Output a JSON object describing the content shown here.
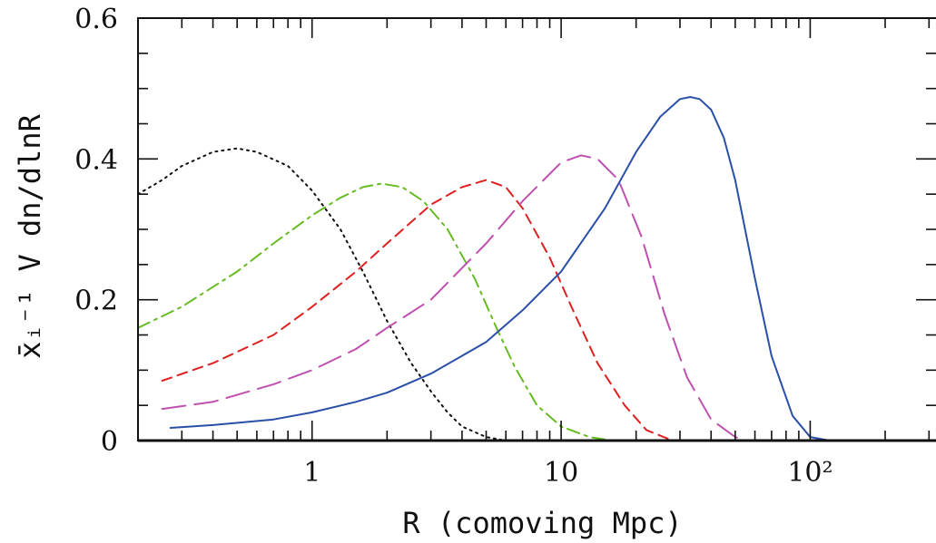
{
  "chart_data": {
    "type": "line",
    "xscale": "log",
    "xlabel": "R (comoving Mpc)",
    "ylabel": "x̄ᵢ⁻¹ V dn/dlnR",
    "xlim": [
      0.2,
      320
    ],
    "ylim": [
      0,
      0.6
    ],
    "x_tick_labels": [
      "1",
      "10",
      "10²"
    ],
    "y_tick_labels": [
      "0",
      "0.2",
      "0.4",
      "0.6"
    ],
    "legend": "none",
    "grid": false,
    "series": [
      {
        "color": "#111111",
        "dash": "dotted",
        "x": [
          0.2,
          0.25,
          0.3,
          0.4,
          0.5,
          0.6,
          0.8,
          1.0,
          1.3,
          1.6,
          2.0,
          2.5,
          3.0,
          3.5,
          4.0,
          5.0,
          6.0
        ],
        "y": [
          0.35,
          0.37,
          0.39,
          0.41,
          0.415,
          0.41,
          0.39,
          0.355,
          0.3,
          0.24,
          0.17,
          0.11,
          0.07,
          0.04,
          0.02,
          0.005,
          0.0
        ]
      },
      {
        "color": "#66bb22",
        "dash": "dash-dot",
        "x": [
          0.2,
          0.3,
          0.5,
          0.7,
          1.0,
          1.3,
          1.6,
          1.9,
          2.3,
          2.8,
          3.5,
          4.5,
          5.5,
          6.5,
          8.0,
          10,
          13,
          16
        ],
        "y": [
          0.16,
          0.19,
          0.24,
          0.28,
          0.32,
          0.345,
          0.36,
          0.365,
          0.36,
          0.34,
          0.3,
          0.23,
          0.16,
          0.105,
          0.05,
          0.02,
          0.005,
          0.0
        ]
      },
      {
        "color": "#e02020",
        "dash": "short-dash",
        "x": [
          0.25,
          0.4,
          0.7,
          1.0,
          1.5,
          2.0,
          3.0,
          4.0,
          5.0,
          6.0,
          7.0,
          9.0,
          11,
          14,
          18,
          22,
          28
        ],
        "y": [
          0.085,
          0.11,
          0.15,
          0.19,
          0.24,
          0.28,
          0.335,
          0.36,
          0.37,
          0.36,
          0.33,
          0.26,
          0.19,
          0.11,
          0.05,
          0.015,
          0.0
        ]
      },
      {
        "color": "#c050b0",
        "dash": "long-dash",
        "x": [
          0.25,
          0.4,
          0.7,
          1.0,
          1.5,
          2.0,
          3.0,
          5.0,
          7.0,
          10,
          12,
          14,
          17,
          21,
          26,
          32,
          40,
          50,
          55
        ],
        "y": [
          0.045,
          0.055,
          0.08,
          0.1,
          0.13,
          0.16,
          0.2,
          0.28,
          0.34,
          0.395,
          0.405,
          0.4,
          0.37,
          0.29,
          0.18,
          0.09,
          0.03,
          0.005,
          0.0
        ]
      },
      {
        "color": "#2a4fa8",
        "dash": "solid",
        "x": [
          0.27,
          0.4,
          0.7,
          1.0,
          1.5,
          2.0,
          3.0,
          5.0,
          7.0,
          10,
          15,
          20,
          25,
          30,
          33,
          36,
          40,
          45,
          50,
          60,
          70,
          85,
          100,
          120
        ],
        "y": [
          0.018,
          0.022,
          0.03,
          0.04,
          0.055,
          0.068,
          0.095,
          0.14,
          0.185,
          0.24,
          0.33,
          0.41,
          0.46,
          0.485,
          0.488,
          0.485,
          0.47,
          0.43,
          0.37,
          0.23,
          0.12,
          0.035,
          0.005,
          0.0
        ]
      }
    ]
  }
}
